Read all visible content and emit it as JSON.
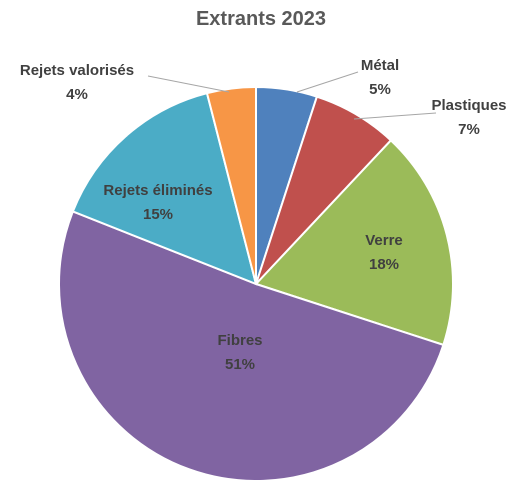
{
  "chart_data": {
    "type": "pie",
    "title": "Extrants 2023",
    "start_angle_deg": 0,
    "direction": "clockwise",
    "slices": [
      {
        "label": "Métal",
        "value": 5,
        "value_label": "5%",
        "color": "#4f81bd"
      },
      {
        "label": "Plastiques",
        "value": 7,
        "value_label": "7%",
        "color": "#c0504d"
      },
      {
        "label": "Verre",
        "value": 18,
        "value_label": "18%",
        "color": "#9bbb59"
      },
      {
        "label": "Fibres",
        "value": 51,
        "value_label": "51%",
        "color": "#8064a2"
      },
      {
        "label": "Rejets éliminés",
        "value": 15,
        "value_label": "15%",
        "color": "#4bacc6"
      },
      {
        "label": "Rejets valorisés",
        "value": 4,
        "value_label": "4%",
        "color": "#f79646"
      }
    ]
  }
}
